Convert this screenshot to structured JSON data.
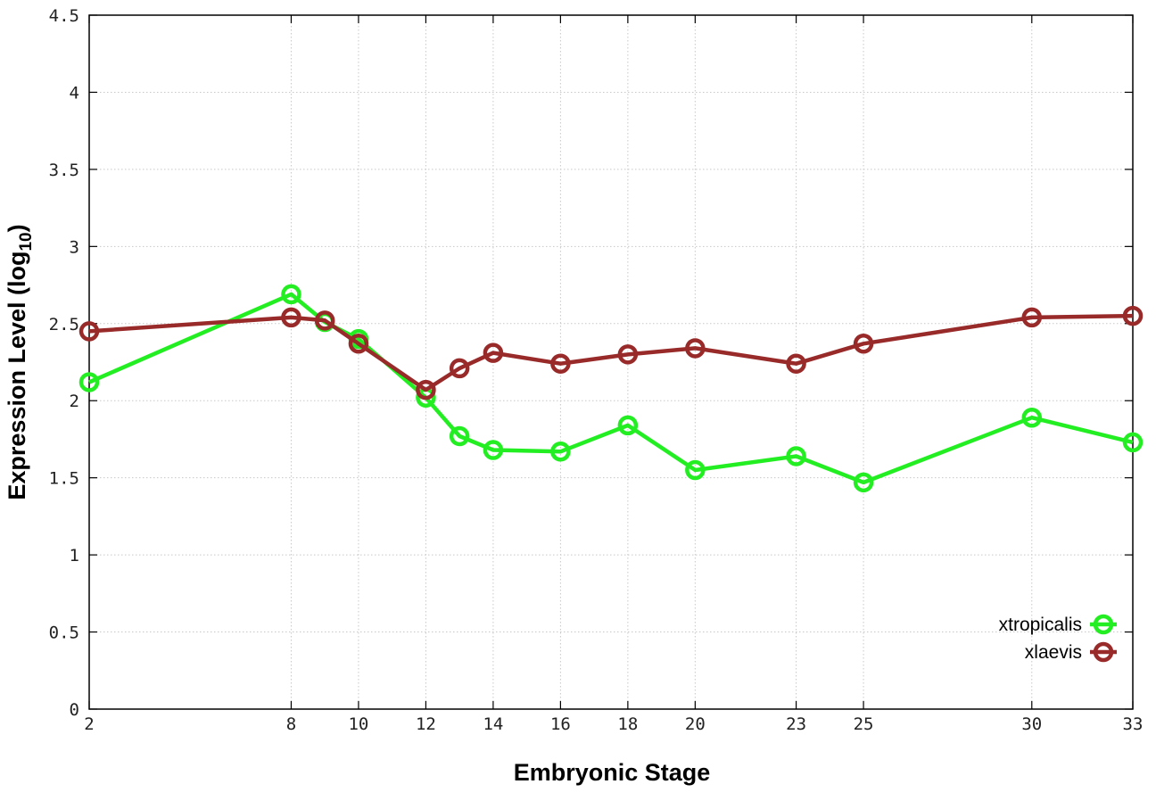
{
  "chart_data": {
    "type": "line",
    "xlabel": "Embryonic Stage",
    "ylabel": "Expression Level (log",
    "ylabel_sub": "10",
    "ylabel_end": ")",
    "ylim": [
      0,
      4.5
    ],
    "yticks": [
      0,
      0.5,
      1,
      1.5,
      2,
      2.5,
      3,
      3.5,
      4,
      4.5
    ],
    "ytick_labels": [
      "0",
      "0.5",
      "1",
      "1.5",
      "2",
      "2.5",
      "3",
      "3.5",
      "4",
      "4.5"
    ],
    "x": [
      2,
      8,
      9,
      10,
      12,
      13,
      14,
      16,
      18,
      20,
      23,
      25,
      30,
      33
    ],
    "xticks": [
      "2",
      "8",
      "10",
      "12",
      "14",
      "16",
      "18",
      "20",
      "23",
      "25",
      "30",
      "33"
    ],
    "grid": true,
    "legend_position": "bottom-right",
    "series": [
      {
        "name": "xtropicalis",
        "color": "#22ee22",
        "marker": "open-circle",
        "values": [
          2.12,
          2.69,
          2.51,
          2.4,
          2.02,
          1.77,
          1.68,
          1.67,
          1.84,
          1.55,
          1.64,
          1.47,
          1.89,
          1.73
        ]
      },
      {
        "name": "xlaevis",
        "color": "#992a2a",
        "marker": "open-circle",
        "values": [
          2.45,
          2.54,
          2.52,
          2.37,
          2.07,
          2.21,
          2.31,
          2.24,
          2.3,
          2.34,
          2.24,
          2.37,
          2.54,
          2.55
        ]
      }
    ]
  }
}
